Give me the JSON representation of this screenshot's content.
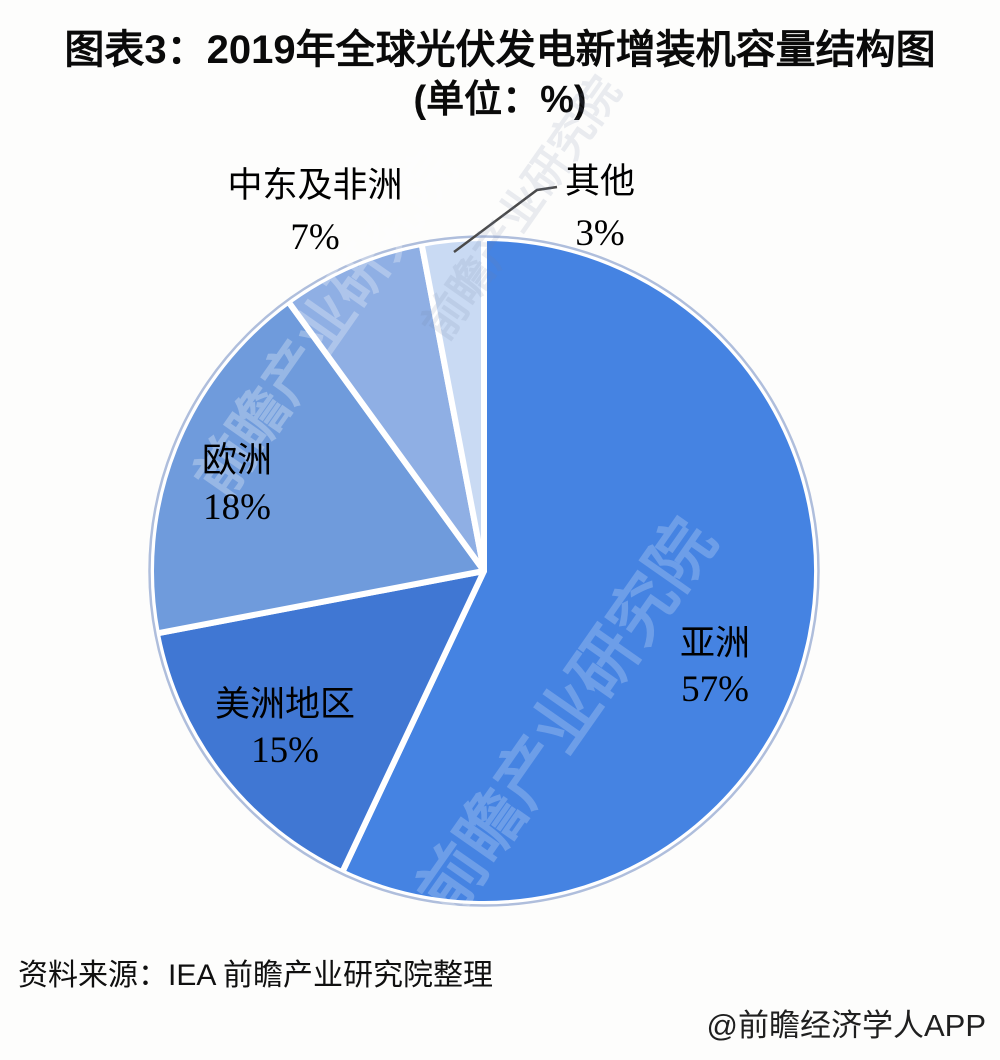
{
  "title": {
    "line1": "图表3：2019年全球光伏发电新增装机容量结构图",
    "line2": "(单位：%)"
  },
  "chart_data": {
    "type": "pie",
    "title": "2019年全球光伏发电新增装机容量结构图",
    "unit": "%",
    "start_angle_deg": 0,
    "direction": "clockwise",
    "divider_color": "#FFFFFF",
    "legend_position": "none",
    "slices": [
      {
        "label": "亚洲",
        "value": 57,
        "pct_label": "57%",
        "color": "#4583E2"
      },
      {
        "label": "美洲地区",
        "value": 15,
        "pct_label": "15%",
        "color": "#4077D3"
      },
      {
        "label": "欧洲",
        "value": 18,
        "pct_label": "18%",
        "color": "#6F9BDC"
      },
      {
        "label": "中东及非洲",
        "value": 7,
        "pct_label": "7%",
        "color": "#8FAFE4"
      },
      {
        "label": "其他",
        "value": 3,
        "pct_label": "3%",
        "color": "#C9DAF3"
      }
    ]
  },
  "source": "资料来源：IEA 前瞻产业研究院整理",
  "credit": "@前瞻经济学人APP",
  "watermark": {
    "text": "前瞻产业研究院"
  }
}
